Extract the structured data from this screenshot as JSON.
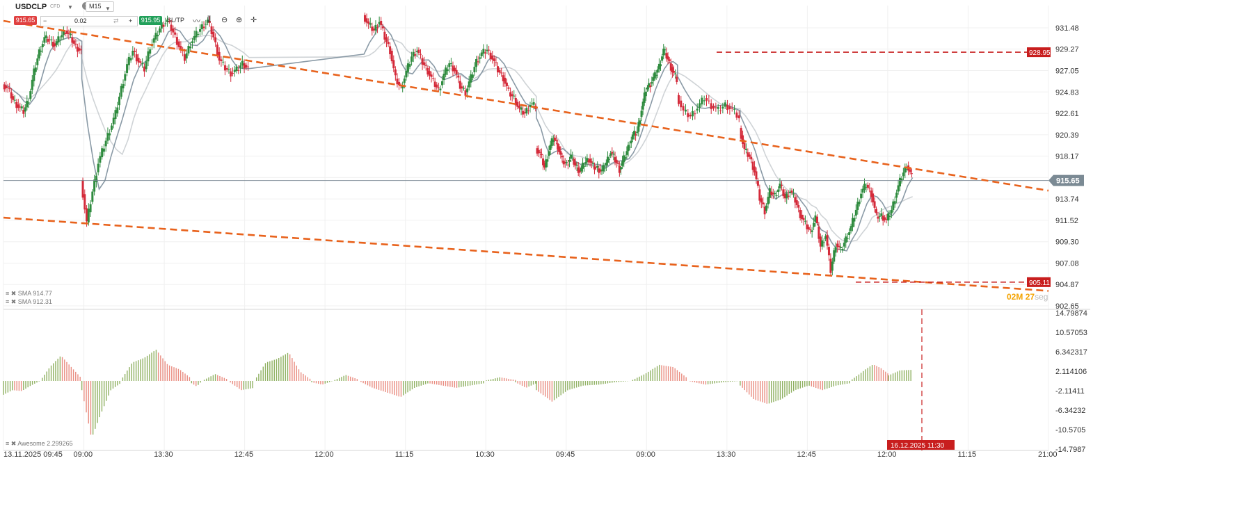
{
  "toolbar": {
    "symbol": "USDCLP",
    "symbol_suffix": "CFD",
    "timeframe": "M15",
    "sell_price": "915.65",
    "buy_price": "915.95",
    "quantity": "0.02",
    "minus": "−",
    "plus": "+",
    "swap_icon": "⇄",
    "sltp": "SL/TP",
    "info": "i",
    "icons": [
      "line-chart-icon",
      "candles-icon",
      "zoom-out-icon",
      "zoom-in-icon",
      "crosshair-icon"
    ]
  },
  "indicators": {
    "sma1": "SMA 914.77",
    "sma2": "SMA 912.31",
    "awesome": "Awesome 2.299265"
  },
  "countdown": {
    "min": "02",
    "min_unit": "M",
    "sec": "27",
    "sec_unit": "seg"
  },
  "colors": {
    "up": "#2e8b3e",
    "down": "#d42a3a",
    "trend": "#e8621c",
    "level": "#c81e1e",
    "ao_up": "#8fb061",
    "ao_down": "#e98c80",
    "sma_fast": "#8a9aa6",
    "sma_slow": "#cfd3d6",
    "price_line": "#7b8a94"
  },
  "chart_data": [
    {
      "type": "candlestick",
      "title": "USDCLP M15",
      "y_axis_ticks": [
        "931.48",
        "929.27",
        "927.05",
        "924.83",
        "922.61",
        "920.39",
        "918.17",
        "915.96",
        "913.74",
        "911.52",
        "909.30",
        "907.08",
        "904.87",
        "902.65"
      ],
      "ylim": [
        902.65,
        931.48
      ],
      "x_axis_ticks": [
        "13.11.2025 09:45",
        "09:00",
        "13:30",
        "12:45",
        "12:00",
        "11:15",
        "10:30",
        "09:45",
        "09:00",
        "13:30",
        "12:45",
        "12:00",
        "11:15",
        "21:00"
      ],
      "current_price": "915.65",
      "levels": [
        {
          "label": "928.95",
          "value": 928.95
        },
        {
          "label": "905.11",
          "value": 905.11
        }
      ],
      "trendlines": [
        {
          "name": "upper",
          "from": 932.2,
          "to": 914.6
        },
        {
          "name": "lower",
          "from": 911.8,
          "to": 904.2
        }
      ],
      "sma": [
        {
          "name": "SMA",
          "value": 914.77
        },
        {
          "name": "SMA",
          "value": 912.31
        }
      ],
      "segments": [
        {
          "from": 0,
          "to": 0.075,
          "points": [
            925.6,
            925.2,
            924.0,
            923.3,
            922.8,
            924.1,
            926.9,
            929.0,
            930.4,
            930.2,
            929.7,
            930.5,
            931.2,
            930.5,
            929.5,
            929.1
          ]
        },
        {
          "from": 0.075,
          "to": 0.235,
          "points": [
            915.7,
            911.3,
            914.5,
            917.5,
            919.2,
            920.9,
            922.6,
            925.2,
            927.6,
            929.1,
            928.0,
            927.2,
            929.6,
            930.6,
            931.8,
            932.2,
            931.0,
            929.6,
            928.3,
            929.9,
            930.8,
            931.6,
            932.2,
            930.5,
            928.2,
            927.3,
            926.8,
            927.1,
            927.8,
            927.3
          ]
        },
        {
          "from": 0.345,
          "to": 0.51,
          "points": [
            932.8,
            931.8,
            931.2,
            932.2,
            930.5,
            929.1,
            926.2,
            925.2,
            926.9,
            928.5,
            929.2,
            927.9,
            927.0,
            925.9,
            925.0,
            926.6,
            927.8,
            927.1,
            925.4,
            924.8,
            926.3,
            928.0,
            928.8,
            929.2,
            928.3,
            927.1,
            926.3,
            924.8,
            924.2,
            923.0,
            922.6,
            923.6,
            923.3
          ]
        },
        {
          "from": 0.51,
          "to": 0.645,
          "points": [
            919.0,
            918.4,
            917.0,
            918.8,
            920.1,
            919.2,
            917.7,
            917.3,
            918.2,
            917.2,
            916.6,
            917.4,
            917.9,
            917.1,
            916.9,
            916.6,
            917.5,
            918.6,
            917.8,
            916.8,
            917.9,
            919.1,
            920.3,
            920.7,
            923.0,
            925.1,
            925.7,
            926.5,
            927.5,
            929.2,
            928.2,
            927.0,
            926.1
          ]
        },
        {
          "from": 0.645,
          "to": 0.705,
          "points": [
            924.5,
            922.8,
            922.3,
            923.2,
            924.2,
            923.4,
            922.9,
            923.5,
            923.0,
            922.1
          ]
        },
        {
          "from": 0.705,
          "to": 0.87,
          "points": [
            921.1,
            918.8,
            918.1,
            916.6,
            913.8,
            912.5,
            914.5,
            914.1,
            915.2,
            913.8,
            914.6,
            913.6,
            912.1,
            911.1,
            910.3,
            911.9,
            908.8,
            910.0,
            906.3,
            909.1,
            908.4,
            909.6,
            910.8,
            912.6,
            914.4,
            915.2,
            914.3,
            911.9,
            912.0,
            911.5,
            912.6,
            914.5,
            916.1,
            917.2,
            916.0
          ]
        }
      ]
    },
    {
      "type": "bar",
      "title": "Awesome",
      "y_axis_ticks": [
        "14.79874",
        "10.57053",
        "6.342317",
        "2.114106",
        "-2.11411",
        "-6.34232",
        "-10.5705",
        "-14.7987"
      ],
      "ylim": [
        -14.7987,
        14.79874
      ],
      "crosshair_label": "16.12.2025 11:30",
      "segments": [
        {
          "from": 0,
          "to": 0.035,
          "points": [
            -3.0,
            -2.0,
            -2.2,
            -1.0,
            0
          ]
        },
        {
          "from": 0.035,
          "to": 0.075,
          "points": [
            0,
            3.2,
            5.5,
            3.0,
            0.5
          ]
        },
        {
          "from": 0.075,
          "to": 0.112,
          "points": [
            -2,
            -12.5,
            -7.0,
            -2.0,
            -0.5
          ]
        },
        {
          "from": 0.112,
          "to": 0.18,
          "points": [
            0,
            4.0,
            5.0,
            6.8,
            3.5,
            2.5,
            0.5
          ]
        },
        {
          "from": 0.18,
          "to": 0.19,
          "points": [
            -0.5,
            -1.2,
            0
          ]
        },
        {
          "from": 0.19,
          "to": 0.215,
          "points": [
            0,
            1.5,
            0.3
          ]
        },
        {
          "from": 0.215,
          "to": 0.24,
          "points": [
            0,
            -2.0,
            -1.5
          ]
        },
        {
          "from": 0.24,
          "to": 0.295,
          "points": [
            0,
            4.0,
            4.8,
            6.2,
            2.0,
            0.2
          ]
        },
        {
          "from": 0.295,
          "to": 0.315,
          "points": [
            -0.3,
            -0.8,
            0
          ]
        },
        {
          "from": 0.315,
          "to": 0.34,
          "points": [
            0,
            1.3,
            0.3
          ]
        },
        {
          "from": 0.34,
          "to": 0.46,
          "points": [
            0,
            -1.5,
            -2.5,
            -3.5,
            -1.5,
            -0.5,
            -1.0,
            -1.5,
            -1.0,
            -0.5
          ]
        },
        {
          "from": 0.46,
          "to": 0.49,
          "points": [
            0,
            0.8,
            0.2
          ]
        },
        {
          "from": 0.49,
          "to": 0.51,
          "points": [
            -0.3,
            -1.5,
            -0.5
          ]
        },
        {
          "from": 0.51,
          "to": 0.6,
          "points": [
            -2.0,
            -4.5,
            -2.0,
            -1.0,
            -0.8,
            -0.3,
            0
          ]
        },
        {
          "from": 0.6,
          "to": 0.655,
          "points": [
            0,
            1.5,
            3.5,
            3.0,
            0.5
          ]
        },
        {
          "from": 0.655,
          "to": 0.705,
          "points": [
            0,
            -0.8,
            -0.3,
            0
          ]
        },
        {
          "from": 0.705,
          "to": 0.81,
          "points": [
            -1.0,
            -4.0,
            -5.0,
            -4.0,
            -2.0,
            -1.0,
            -2.0,
            -1.0,
            -0.5
          ]
        },
        {
          "from": 0.81,
          "to": 0.847,
          "points": [
            0,
            1.2,
            2.5,
            3.6,
            2.8,
            1.5
          ]
        },
        {
          "from": 0.847,
          "to": 0.869,
          "points": [
            1.2,
            2.3,
            2.4
          ]
        }
      ]
    }
  ]
}
